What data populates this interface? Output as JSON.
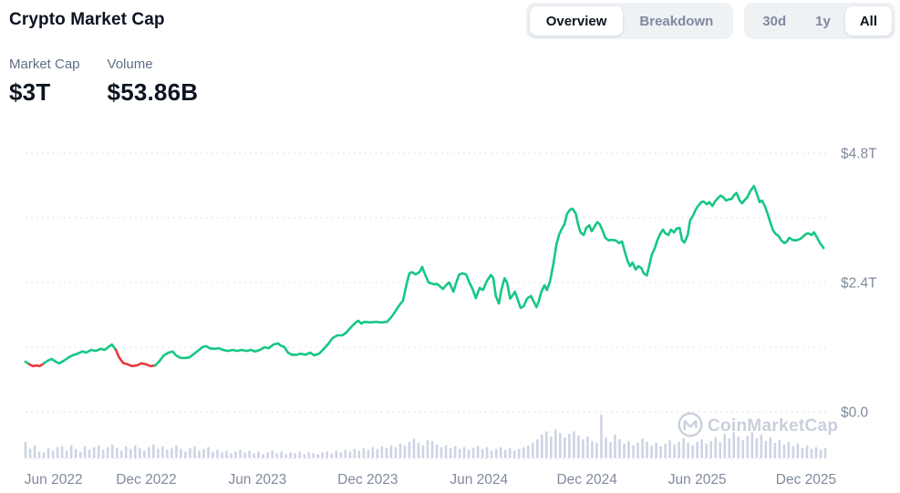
{
  "header": {
    "title": "Crypto Market Cap",
    "view_tabs": [
      {
        "label": "Overview",
        "active": true
      },
      {
        "label": "Breakdown",
        "active": false
      }
    ],
    "range_tabs": [
      {
        "label": "30d",
        "active": false
      },
      {
        "label": "1y",
        "active": false
      },
      {
        "label": "All",
        "active": true
      }
    ]
  },
  "stats": [
    {
      "label": "Market Cap",
      "value": "$3T"
    },
    {
      "label": "Volume",
      "value": "$53.86B"
    }
  ],
  "watermark": {
    "icon": "coinmarketcap-logo",
    "text": "CoinMarketCap"
  },
  "colors": {
    "up": "#16C784",
    "down": "#EA3943",
    "grid": "#D6DCE3",
    "axis_text": "#808A9D",
    "volume_bar": "#CDD4E3",
    "watermark": "#C9D0DC",
    "title": "#0D1421",
    "label": "#616E85"
  },
  "chart_data": {
    "type": "line",
    "title": "Crypto Market Cap",
    "unit": "trillion USD",
    "ylim": [
      0,
      4.95
    ],
    "grid": "dotted-horizontal",
    "legend_position": "none",
    "y_grid_values": [
      0,
      1.2,
      2.4,
      3.6,
      4.8
    ],
    "y_ticks": [
      {
        "v": 4.8,
        "label": "$4.8T"
      },
      {
        "v": 2.4,
        "label": "$2.4T"
      },
      {
        "v": 0.0,
        "label": "$0.0"
      }
    ],
    "x_ticks": [
      {
        "t": 0.035,
        "label": "Jun 2022"
      },
      {
        "t": 0.151,
        "label": "Dec 2022"
      },
      {
        "t": 0.29,
        "label": "Jun 2023"
      },
      {
        "t": 0.428,
        "label": "Dec 2023"
      },
      {
        "t": 0.567,
        "label": "Jun 2024"
      },
      {
        "t": 0.702,
        "label": "Dec 2024"
      },
      {
        "t": 0.84,
        "label": "Jun 2025"
      },
      {
        "t": 0.976,
        "label": "Dec 2025"
      }
    ],
    "red_t_ranges": [
      [
        0.004,
        0.023
      ],
      [
        0.111,
        0.163
      ]
    ],
    "series": [
      {
        "name": "Market Cap",
        "points": [
          [
            0.0,
            0.93
          ],
          [
            0.005,
            0.88
          ],
          [
            0.009,
            0.85
          ],
          [
            0.014,
            0.86
          ],
          [
            0.018,
            0.85
          ],
          [
            0.023,
            0.9
          ],
          [
            0.029,
            0.96
          ],
          [
            0.033,
            0.98
          ],
          [
            0.038,
            0.93
          ],
          [
            0.042,
            0.9
          ],
          [
            0.048,
            0.95
          ],
          [
            0.054,
            1.01
          ],
          [
            0.059,
            1.05
          ],
          [
            0.065,
            1.08
          ],
          [
            0.071,
            1.12
          ],
          [
            0.076,
            1.1
          ],
          [
            0.082,
            1.15
          ],
          [
            0.088,
            1.13
          ],
          [
            0.094,
            1.17
          ],
          [
            0.099,
            1.15
          ],
          [
            0.105,
            1.22
          ],
          [
            0.108,
            1.25
          ],
          [
            0.113,
            1.15
          ],
          [
            0.117,
            1.01
          ],
          [
            0.122,
            0.91
          ],
          [
            0.128,
            0.88
          ],
          [
            0.133,
            0.85
          ],
          [
            0.139,
            0.86
          ],
          [
            0.145,
            0.9
          ],
          [
            0.151,
            0.88
          ],
          [
            0.156,
            0.85
          ],
          [
            0.162,
            0.86
          ],
          [
            0.168,
            0.95
          ],
          [
            0.173,
            1.05
          ],
          [
            0.179,
            1.1
          ],
          [
            0.184,
            1.12
          ],
          [
            0.188,
            1.05
          ],
          [
            0.194,
            1.0
          ],
          [
            0.2,
            1.0
          ],
          [
            0.205,
            1.01
          ],
          [
            0.211,
            1.08
          ],
          [
            0.217,
            1.15
          ],
          [
            0.221,
            1.2
          ],
          [
            0.226,
            1.22
          ],
          [
            0.23,
            1.18
          ],
          [
            0.236,
            1.17
          ],
          [
            0.242,
            1.18
          ],
          [
            0.247,
            1.15
          ],
          [
            0.253,
            1.13
          ],
          [
            0.259,
            1.15
          ],
          [
            0.265,
            1.13
          ],
          [
            0.27,
            1.15
          ],
          [
            0.276,
            1.13
          ],
          [
            0.282,
            1.15
          ],
          [
            0.287,
            1.12
          ],
          [
            0.293,
            1.15
          ],
          [
            0.299,
            1.2
          ],
          [
            0.304,
            1.18
          ],
          [
            0.31,
            1.25
          ],
          [
            0.316,
            1.27
          ],
          [
            0.319,
            1.23
          ],
          [
            0.324,
            1.2
          ],
          [
            0.328,
            1.1
          ],
          [
            0.333,
            1.06
          ],
          [
            0.339,
            1.06
          ],
          [
            0.344,
            1.08
          ],
          [
            0.35,
            1.06
          ],
          [
            0.356,
            1.1
          ],
          [
            0.361,
            1.05
          ],
          [
            0.367,
            1.08
          ],
          [
            0.373,
            1.17
          ],
          [
            0.379,
            1.27
          ],
          [
            0.384,
            1.37
          ],
          [
            0.39,
            1.42
          ],
          [
            0.396,
            1.42
          ],
          [
            0.401,
            1.47
          ],
          [
            0.407,
            1.57
          ],
          [
            0.413,
            1.66
          ],
          [
            0.416,
            1.69
          ],
          [
            0.42,
            1.64
          ],
          [
            0.424,
            1.67
          ],
          [
            0.431,
            1.66
          ],
          [
            0.438,
            1.67
          ],
          [
            0.445,
            1.66
          ],
          [
            0.452,
            1.67
          ],
          [
            0.458,
            1.77
          ],
          [
            0.463,
            1.88
          ],
          [
            0.468,
            1.99
          ],
          [
            0.472,
            2.06
          ],
          [
            0.477,
            2.4
          ],
          [
            0.48,
            2.57
          ],
          [
            0.483,
            2.59
          ],
          [
            0.488,
            2.55
          ],
          [
            0.493,
            2.6
          ],
          [
            0.496,
            2.69
          ],
          [
            0.499,
            2.57
          ],
          [
            0.504,
            2.4
          ],
          [
            0.51,
            2.37
          ],
          [
            0.515,
            2.37
          ],
          [
            0.522,
            2.28
          ],
          [
            0.527,
            2.37
          ],
          [
            0.53,
            2.4
          ],
          [
            0.535,
            2.23
          ],
          [
            0.538,
            2.37
          ],
          [
            0.542,
            2.54
          ],
          [
            0.546,
            2.57
          ],
          [
            0.551,
            2.55
          ],
          [
            0.555,
            2.4
          ],
          [
            0.559,
            2.28
          ],
          [
            0.563,
            2.11
          ],
          [
            0.568,
            2.3
          ],
          [
            0.572,
            2.26
          ],
          [
            0.577,
            2.43
          ],
          [
            0.582,
            2.54
          ],
          [
            0.585,
            2.48
          ],
          [
            0.588,
            2.15
          ],
          [
            0.592,
            2.01
          ],
          [
            0.595,
            2.26
          ],
          [
            0.599,
            2.48
          ],
          [
            0.602,
            2.4
          ],
          [
            0.606,
            2.1
          ],
          [
            0.609,
            2.16
          ],
          [
            0.612,
            2.23
          ],
          [
            0.616,
            2.06
          ],
          [
            0.619,
            1.93
          ],
          [
            0.623,
            1.96
          ],
          [
            0.627,
            2.1
          ],
          [
            0.632,
            2.15
          ],
          [
            0.635,
            2.06
          ],
          [
            0.639,
            1.94
          ],
          [
            0.642,
            2.06
          ],
          [
            0.645,
            2.23
          ],
          [
            0.649,
            2.35
          ],
          [
            0.652,
            2.26
          ],
          [
            0.656,
            2.43
          ],
          [
            0.66,
            2.74
          ],
          [
            0.664,
            3.11
          ],
          [
            0.667,
            3.28
          ],
          [
            0.67,
            3.38
          ],
          [
            0.674,
            3.48
          ],
          [
            0.677,
            3.67
          ],
          [
            0.681,
            3.75
          ],
          [
            0.684,
            3.77
          ],
          [
            0.688,
            3.68
          ],
          [
            0.691,
            3.48
          ],
          [
            0.694,
            3.33
          ],
          [
            0.698,
            3.28
          ],
          [
            0.701,
            3.41
          ],
          [
            0.705,
            3.46
          ],
          [
            0.708,
            3.35
          ],
          [
            0.712,
            3.45
          ],
          [
            0.715,
            3.52
          ],
          [
            0.718,
            3.48
          ],
          [
            0.722,
            3.35
          ],
          [
            0.725,
            3.23
          ],
          [
            0.729,
            3.18
          ],
          [
            0.733,
            3.19
          ],
          [
            0.738,
            3.18
          ],
          [
            0.742,
            3.13
          ],
          [
            0.746,
            3.16
          ],
          [
            0.749,
            2.99
          ],
          [
            0.753,
            2.79
          ],
          [
            0.756,
            2.7
          ],
          [
            0.759,
            2.77
          ],
          [
            0.763,
            2.64
          ],
          [
            0.766,
            2.7
          ],
          [
            0.77,
            2.67
          ],
          [
            0.773,
            2.57
          ],
          [
            0.777,
            2.53
          ],
          [
            0.78,
            2.72
          ],
          [
            0.783,
            2.91
          ],
          [
            0.787,
            3.04
          ],
          [
            0.79,
            3.18
          ],
          [
            0.794,
            3.31
          ],
          [
            0.797,
            3.38
          ],
          [
            0.8,
            3.31
          ],
          [
            0.804,
            3.28
          ],
          [
            0.807,
            3.38
          ],
          [
            0.811,
            3.33
          ],
          [
            0.814,
            3.4
          ],
          [
            0.818,
            3.41
          ],
          [
            0.821,
            3.18
          ],
          [
            0.824,
            3.14
          ],
          [
            0.828,
            3.28
          ],
          [
            0.831,
            3.55
          ],
          [
            0.835,
            3.65
          ],
          [
            0.838,
            3.75
          ],
          [
            0.841,
            3.82
          ],
          [
            0.845,
            3.89
          ],
          [
            0.848,
            3.9
          ],
          [
            0.852,
            3.85
          ],
          [
            0.855,
            3.89
          ],
          [
            0.859,
            3.82
          ],
          [
            0.862,
            3.9
          ],
          [
            0.865,
            3.95
          ],
          [
            0.869,
            4.01
          ],
          [
            0.872,
            3.99
          ],
          [
            0.876,
            3.92
          ],
          [
            0.879,
            3.94
          ],
          [
            0.883,
            3.95
          ],
          [
            0.886,
            4.02
          ],
          [
            0.889,
            4.06
          ],
          [
            0.893,
            3.92
          ],
          [
            0.896,
            3.87
          ],
          [
            0.9,
            3.94
          ],
          [
            0.903,
            3.99
          ],
          [
            0.906,
            4.09
          ],
          [
            0.911,
            4.19
          ],
          [
            0.915,
            4.02
          ],
          [
            0.918,
            3.89
          ],
          [
            0.921,
            3.92
          ],
          [
            0.925,
            3.8
          ],
          [
            0.928,
            3.67
          ],
          [
            0.932,
            3.48
          ],
          [
            0.935,
            3.36
          ],
          [
            0.938,
            3.3
          ],
          [
            0.942,
            3.26
          ],
          [
            0.945,
            3.18
          ],
          [
            0.949,
            3.13
          ],
          [
            0.952,
            3.16
          ],
          [
            0.955,
            3.23
          ],
          [
            0.959,
            3.19
          ],
          [
            0.962,
            3.18
          ],
          [
            0.966,
            3.19
          ],
          [
            0.969,
            3.21
          ],
          [
            0.973,
            3.26
          ],
          [
            0.976,
            3.3
          ],
          [
            0.979,
            3.31
          ],
          [
            0.983,
            3.28
          ],
          [
            0.986,
            3.33
          ],
          [
            0.99,
            3.23
          ],
          [
            0.993,
            3.14
          ],
          [
            0.998,
            3.04
          ]
        ]
      }
    ],
    "volume_bars": {
      "name": "Volume",
      "values": [
        0.38,
        0.22,
        0.3,
        0.16,
        0.14,
        0.24,
        0.18,
        0.26,
        0.28,
        0.18,
        0.3,
        0.22,
        0.16,
        0.28,
        0.2,
        0.26,
        0.3,
        0.2,
        0.26,
        0.32,
        0.24,
        0.18,
        0.28,
        0.22,
        0.3,
        0.24,
        0.18,
        0.26,
        0.32,
        0.22,
        0.28,
        0.2,
        0.24,
        0.3,
        0.22,
        0.16,
        0.24,
        0.28,
        0.18,
        0.22,
        0.26,
        0.16,
        0.2,
        0.14,
        0.18,
        0.12,
        0.16,
        0.2,
        0.14,
        0.18,
        0.12,
        0.16,
        0.1,
        0.14,
        0.18,
        0.12,
        0.16,
        0.1,
        0.14,
        0.12,
        0.16,
        0.1,
        0.14,
        0.12,
        0.1,
        0.14,
        0.16,
        0.12,
        0.18,
        0.14,
        0.2,
        0.16,
        0.22,
        0.18,
        0.24,
        0.2,
        0.26,
        0.22,
        0.28,
        0.24,
        0.3,
        0.26,
        0.34,
        0.3,
        0.38,
        0.45,
        0.36,
        0.3,
        0.42,
        0.4,
        0.32,
        0.26,
        0.3,
        0.24,
        0.28,
        0.22,
        0.26,
        0.2,
        0.24,
        0.28,
        0.22,
        0.26,
        0.18,
        0.22,
        0.26,
        0.2,
        0.24,
        0.18,
        0.22,
        0.26,
        0.3,
        0.36,
        0.44,
        0.55,
        0.62,
        0.5,
        0.66,
        0.58,
        0.48,
        0.56,
        0.62,
        0.52,
        0.44,
        0.5,
        0.4,
        0.36,
        1.0,
        0.48,
        0.38,
        0.55,
        0.44,
        0.34,
        0.4,
        0.3,
        0.36,
        0.46,
        0.38,
        0.3,
        0.36,
        0.28,
        0.34,
        0.42,
        0.32,
        0.38,
        0.46,
        0.36,
        0.3,
        0.38,
        0.44,
        0.34,
        0.4,
        0.48,
        0.38,
        0.56,
        0.46,
        0.6,
        0.5,
        0.42,
        0.52,
        0.6,
        0.46,
        0.54,
        0.4,
        0.48,
        0.36,
        0.42,
        0.32,
        0.38,
        0.28,
        0.34,
        0.24,
        0.3,
        0.22,
        0.26,
        0.2,
        0.24
      ]
    }
  }
}
